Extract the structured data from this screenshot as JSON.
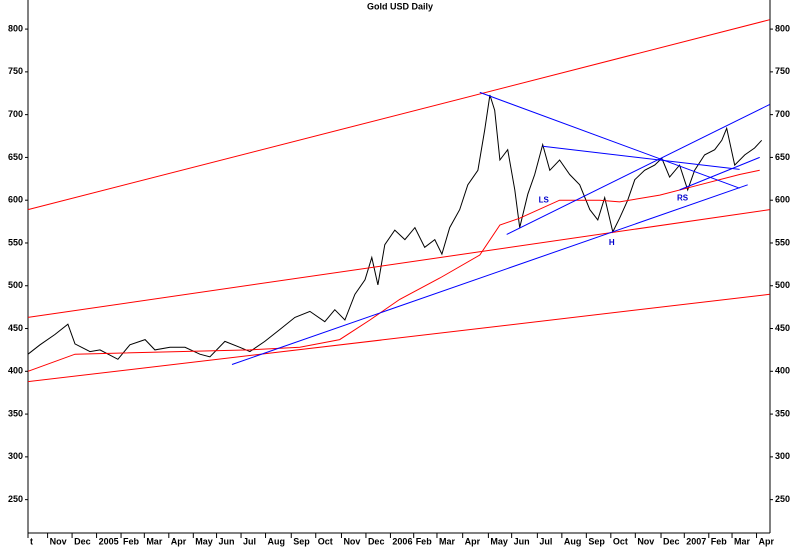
{
  "chart_data": {
    "type": "line",
    "title": "Gold USD Daily",
    "xlim": [
      0,
      30.3
    ],
    "ylim": [
      211,
      834
    ],
    "yticks": [
      250,
      300,
      350,
      400,
      450,
      500,
      550,
      600,
      650,
      700,
      750,
      800
    ],
    "xticks": [
      {
        "value": 0,
        "label": "t"
      },
      {
        "value": 0.8,
        "label": "Nov"
      },
      {
        "value": 1.8,
        "label": "Dec"
      },
      {
        "value": 2.8,
        "label": "2005"
      },
      {
        "value": 3.8,
        "label": "Feb"
      },
      {
        "value": 4.75,
        "label": "Mar"
      },
      {
        "value": 5.75,
        "label": "Apr"
      },
      {
        "value": 6.75,
        "label": "May"
      },
      {
        "value": 7.7,
        "label": "Jun"
      },
      {
        "value": 8.7,
        "label": "Jul"
      },
      {
        "value": 9.7,
        "label": "Aug"
      },
      {
        "value": 10.75,
        "label": "Sep"
      },
      {
        "value": 11.75,
        "label": "Oct"
      },
      {
        "value": 12.8,
        "label": "Nov"
      },
      {
        "value": 13.8,
        "label": "Dec"
      },
      {
        "value": 14.8,
        "label": "2006"
      },
      {
        "value": 15.75,
        "label": "Feb"
      },
      {
        "value": 16.7,
        "label": "Mar"
      },
      {
        "value": 17.75,
        "label": "Apr"
      },
      {
        "value": 18.8,
        "label": "May"
      },
      {
        "value": 19.75,
        "label": "Jun"
      },
      {
        "value": 20.8,
        "label": "Jul"
      },
      {
        "value": 21.8,
        "label": "Aug"
      },
      {
        "value": 22.8,
        "label": "Sep"
      },
      {
        "value": 23.8,
        "label": "Oct"
      },
      {
        "value": 24.8,
        "label": "Nov"
      },
      {
        "value": 25.85,
        "label": "Dec"
      },
      {
        "value": 26.8,
        "label": "2007"
      },
      {
        "value": 27.8,
        "label": "Feb"
      },
      {
        "value": 28.75,
        "label": "Mar"
      },
      {
        "value": 29.75,
        "label": "Apr"
      }
    ],
    "series": [
      {
        "color": "#000000",
        "x": [
          0,
          0.49,
          1.1,
          1.63,
          1.92,
          2.53,
          2.94,
          3.67,
          4.16,
          4.78,
          5.18,
          5.8,
          6.41,
          7.02,
          7.43,
          8.04,
          8.65,
          9.06,
          9.67,
          10.29,
          10.9,
          11.51,
          12.12,
          12.53,
          12.94,
          13.35,
          13.76,
          14.04,
          14.29,
          14.57,
          14.98,
          15.39,
          15.8,
          16.2,
          16.61,
          16.9,
          17.22,
          17.63,
          17.96,
          18.37,
          18.65,
          18.86,
          19.06,
          19.27,
          19.59,
          19.88,
          20.08,
          20.41,
          20.69,
          21.02,
          21.31,
          21.71,
          22.12,
          22.53,
          22.94,
          23.27,
          23.55,
          23.88,
          24.16,
          24.49,
          24.78,
          25.18,
          25.59,
          25.88,
          26.2,
          26.61,
          26.94,
          27.22,
          27.63,
          28.04,
          28.33,
          28.53,
          28.86,
          29.27,
          29.67,
          29.96
        ],
        "values": [
          420,
          431,
          443,
          455,
          432,
          423,
          425,
          414,
          431,
          437,
          425,
          428,
          428,
          420,
          417,
          435,
          428,
          423,
          435,
          449,
          463,
          470,
          458,
          472,
          460,
          490,
          507,
          533,
          501,
          548,
          565,
          554,
          568,
          545,
          554,
          537,
          568,
          589,
          618,
          635,
          682,
          723,
          705,
          647,
          659,
          612,
          568,
          607,
          630,
          665,
          635,
          647,
          630,
          618,
          589,
          577,
          603,
          563,
          579,
          600,
          624,
          635,
          641,
          649,
          627,
          641,
          612,
          635,
          653,
          659,
          670,
          684,
          641,
          653,
          661,
          670
        ]
      },
      {
        "color": "#ff0000",
        "x": [
          0,
          1.92,
          9.06,
          11.1,
          12.73,
          13.96,
          15.18,
          16.82,
          18.45,
          19.27,
          20.08,
          21.71,
          23.35,
          24.16,
          25.8,
          27.43,
          29.06,
          29.88
        ],
        "values": [
          400,
          420,
          425,
          428,
          437,
          460,
          484,
          509,
          536,
          571,
          579,
          600,
          600,
          598,
          606,
          618,
          630,
          635
        ]
      },
      {
        "color": "#ff0000",
        "x": [
          0,
          30.29
        ],
        "values": [
          589,
          811
        ]
      },
      {
        "color": "#ff0000",
        "x": [
          0,
          30.29
        ],
        "values": [
          463,
          589
        ]
      },
      {
        "color": "#ff0000",
        "x": [
          0,
          30.29
        ],
        "values": [
          388,
          490
        ]
      },
      {
        "color": "#0000ff",
        "x": [
          18.45,
          29.06
        ],
        "values": [
          726,
          614
        ]
      },
      {
        "color": "#0000ff",
        "x": [
          21.02,
          29.06
        ],
        "values": [
          663,
          636
        ]
      },
      {
        "color": "#0000ff",
        "x": [
          8.33,
          29.39
        ],
        "values": [
          408,
          618
        ]
      },
      {
        "color": "#0000ff",
        "x": [
          19.55,
          30.29
        ],
        "values": [
          560,
          712
        ]
      },
      {
        "color": "#0000ff",
        "x": [
          26.61,
          29.88
        ],
        "values": [
          612,
          650
        ]
      }
    ],
    "annotations": [
      {
        "text": "LS",
        "x": 21.06,
        "y": 600
      },
      {
        "text": "H",
        "x": 23.84,
        "y": 550
      },
      {
        "text": "RS",
        "x": 26.73,
        "y": 602
      }
    ]
  }
}
